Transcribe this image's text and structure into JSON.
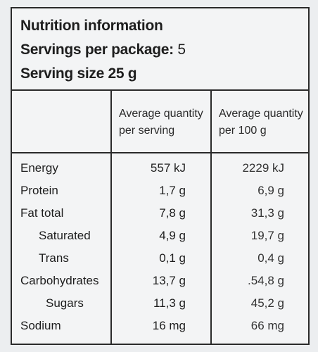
{
  "header": {
    "title": "Nutrition information",
    "servings_label": "Servings per package:",
    "servings_value": "5",
    "serving_size": "Serving size 25 g"
  },
  "columns": {
    "per_serving": [
      "Average quantity",
      "per serving"
    ],
    "per_100g": [
      "Average quantity",
      "per 100 g"
    ]
  },
  "rows": [
    {
      "label": "Energy",
      "per_serving": "557 kJ",
      "per_100g": "2229 kJ"
    },
    {
      "label": "Protein",
      "per_serving": "1,7 g",
      "per_100g": "6,9 g"
    },
    {
      "label": "Fat total",
      "per_serving": "7,8 g",
      "per_100g": "31,3 g"
    },
    {
      "label": "Saturated",
      "per_serving": "4,9 g",
      "per_100g": "19,7 g"
    },
    {
      "label": "Trans",
      "per_serving": "0,1 g",
      "per_100g": "0,4 g"
    },
    {
      "label": "Carbohydrates",
      "per_serving": "13,7 g",
      "per_100g": ".54,8 g"
    },
    {
      "label": "Sugars",
      "per_serving": "11,3 g",
      "per_100g": "45,2 g"
    },
    {
      "label": "Sodium",
      "per_serving": "16 mg",
      "per_100g": "66 mg"
    }
  ]
}
